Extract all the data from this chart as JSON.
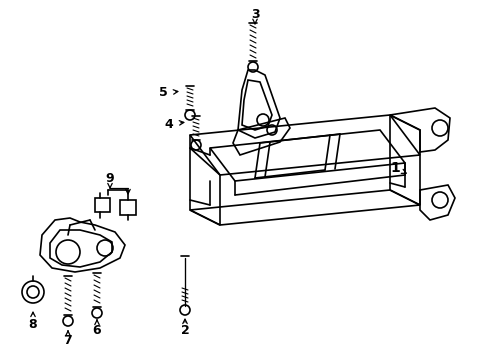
{
  "background_color": "#ffffff",
  "line_color": "#000000",
  "figsize": [
    4.89,
    3.6
  ],
  "dpi": 100,
  "lw": 1.2
}
